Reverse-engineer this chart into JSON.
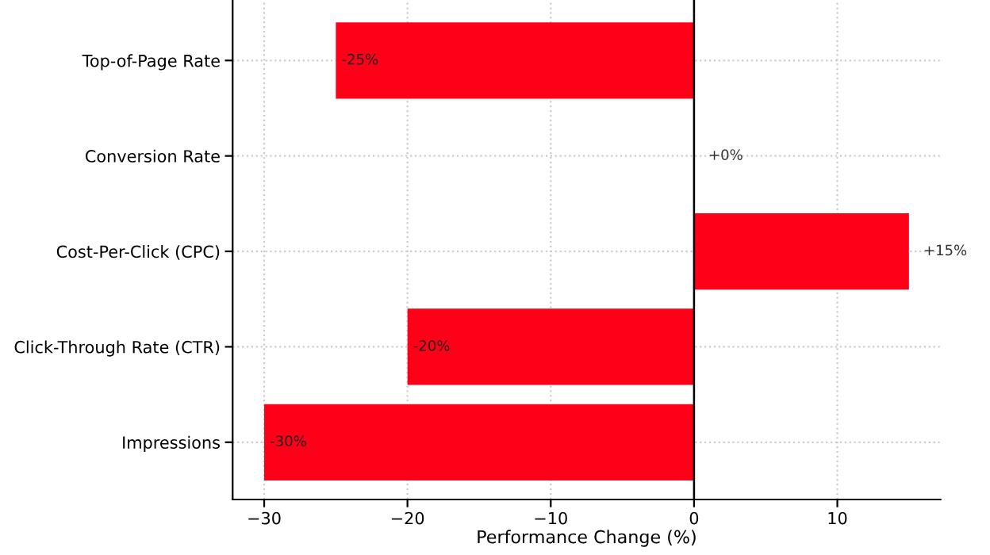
{
  "chart_data": {
    "type": "bar",
    "orientation": "horizontal",
    "categories": [
      "Top-of-Page Rate",
      "Conversion Rate",
      "Cost-Per-Click (CPC)",
      "Click-Through Rate (CTR)",
      "Impressions"
    ],
    "values": [
      -25,
      0,
      15,
      -20,
      -30
    ],
    "value_labels": [
      "-25%",
      "+0%",
      "+15%",
      "-20%",
      "-30%"
    ],
    "color": "#ff0019",
    "xlabel": "Performance Change (%)",
    "xlim": [
      -32.2,
      17.2
    ],
    "xticks": [
      {
        "value": -30,
        "label": "−30"
      },
      {
        "value": -20,
        "label": "−20"
      },
      {
        "value": -10,
        "label": "−10"
      },
      0,
      10
    ],
    "ref_lines": [
      {
        "axis": "x",
        "value": 0,
        "color": "#000000"
      }
    ],
    "grid": true
  }
}
